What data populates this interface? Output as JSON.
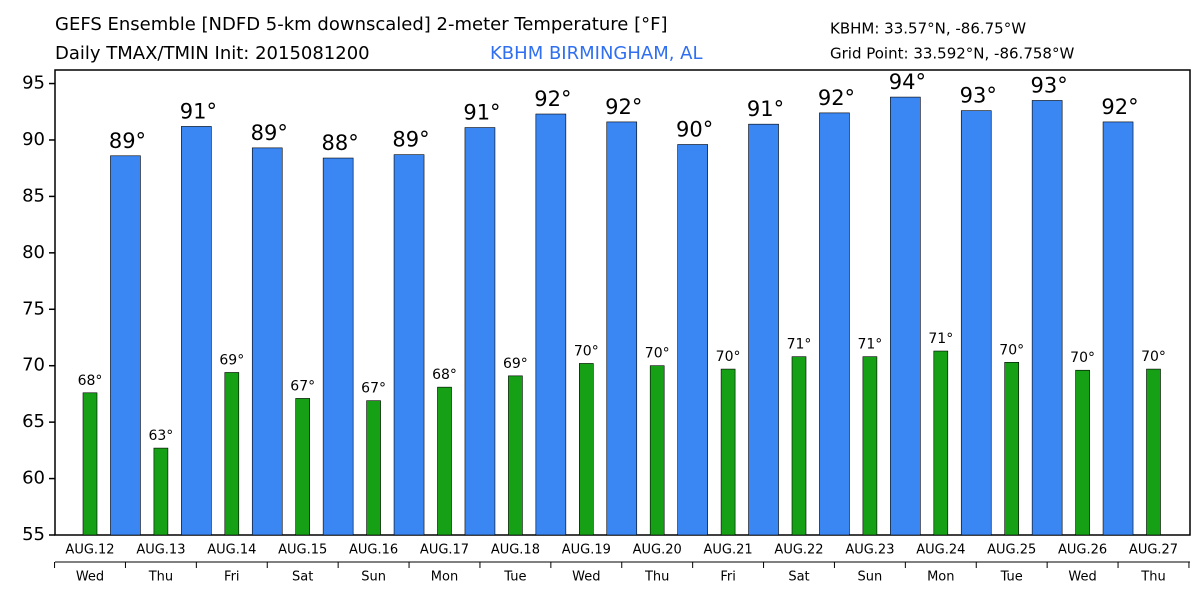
{
  "chart_data": {
    "type": "bar",
    "title": "GEFS Ensemble [NDFD 5-km downscaled] 2-meter Temperature [°F]",
    "subtitle": "Daily TMAX/TMIN Init: 2015081200",
    "station": "KBHM BIRMINGHAM, AL",
    "station_coords": "KBHM: 33.57°N, -86.75°W",
    "grid_point": "Grid Point: 33.592°N, -86.758°W",
    "categories": [
      "AUG.12",
      "AUG.13",
      "AUG.14",
      "AUG.15",
      "AUG.16",
      "AUG.17",
      "AUG.18",
      "AUG.19",
      "AUG.20",
      "AUG.21",
      "AUG.22",
      "AUG.23",
      "AUG.24",
      "AUG.25",
      "AUG.26",
      "AUG.27"
    ],
    "weekdays": [
      "Wed",
      "Thu",
      "Fri",
      "Sat",
      "Sun",
      "Mon",
      "Tue",
      "Wed",
      "Thu",
      "Fri",
      "Sat",
      "Sun",
      "Mon",
      "Tue",
      "Wed",
      "Thu"
    ],
    "series": [
      {
        "name": "TMIN",
        "color": "#16a016",
        "values": [
          67.6,
          62.7,
          69.4,
          67.1,
          66.9,
          68.1,
          69.1,
          70.2,
          70.0,
          69.7,
          70.8,
          70.8,
          71.3,
          70.3,
          69.6,
          69.7
        ],
        "value_labels": [
          "68°",
          "63°",
          "69°",
          "67°",
          "67°",
          "68°",
          "69°",
          "70°",
          "70°",
          "70°",
          "71°",
          "71°",
          "71°",
          "70°",
          "70°",
          "70°"
        ]
      },
      {
        "name": "TMAX",
        "color": "#3a86f2",
        "values": [
          88.6,
          91.2,
          89.3,
          88.4,
          88.7,
          91.1,
          92.3,
          91.6,
          89.6,
          91.4,
          92.4,
          93.8,
          92.6,
          93.5,
          91.6,
          null
        ],
        "value_labels": [
          "89°",
          "91°",
          "89°",
          "88°",
          "89°",
          "91°",
          "92°",
          "92°",
          "90°",
          "91°",
          "92°",
          "94°",
          "93°",
          "93°",
          "92°",
          null
        ]
      }
    ],
    "ylim": [
      55,
      96.2
    ],
    "yticks": [
      55,
      60,
      65,
      70,
      75,
      80,
      85,
      90,
      95
    ]
  }
}
